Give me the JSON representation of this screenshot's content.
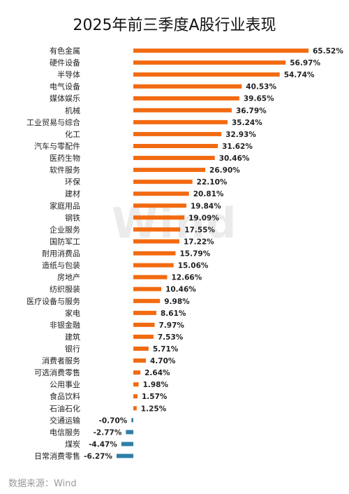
{
  "chart_data": {
    "type": "bar",
    "orientation": "horizontal",
    "title": "2025年前三季度A股行业表现",
    "xlabel": "",
    "ylabel": "",
    "grid": false,
    "legend": "none",
    "categories": [
      "有色金属",
      "硬件设备",
      "半导体",
      "电气设备",
      "媒体娱乐",
      "机械",
      "工业贸易与综合",
      "化工",
      "汽车与零配件",
      "医药生物",
      "软件服务",
      "环保",
      "建材",
      "家庭用品",
      "钢铁",
      "企业服务",
      "国防军工",
      "耐用消费品",
      "造纸与包装",
      "房地产",
      "纺织服装",
      "医疗设备与服务",
      "家电",
      "非银金融",
      "建筑",
      "银行",
      "消费者服务",
      "可选消费零售",
      "公用事业",
      "食品饮料",
      "石油石化",
      "交通运输",
      "电信服务",
      "煤炭",
      "日常消费零售"
    ],
    "values": [
      65.52,
      56.97,
      54.74,
      40.53,
      39.65,
      36.79,
      35.24,
      32.93,
      31.62,
      30.46,
      26.9,
      22.1,
      20.81,
      19.84,
      19.09,
      17.55,
      17.22,
      15.79,
      15.06,
      12.66,
      10.46,
      9.98,
      8.61,
      7.97,
      7.53,
      5.71,
      4.7,
      2.64,
      1.98,
      1.57,
      1.25,
      -0.7,
      -2.77,
      -4.47,
      -6.27
    ],
    "value_labels": [
      "65.52%",
      "56.97%",
      "54.74%",
      "40.53%",
      "39.65%",
      "36.79%",
      "35.24%",
      "32.93%",
      "31.62%",
      "30.46%",
      "26.90%",
      "22.10%",
      "20.81%",
      "19.84%",
      "19.09%",
      "17.55%",
      "17.22%",
      "15.79%",
      "15.06%",
      "12.66%",
      "10.46%",
      "9.98%",
      "8.61%",
      "7.97%",
      "7.53%",
      "5.71%",
      "4.70%",
      "2.64%",
      "1.98%",
      "1.57%",
      "1.25%",
      "-0.70%",
      "-2.77%",
      "-4.47%",
      "-6.27%"
    ],
    "colors": {
      "positive": "#f26a10",
      "negative": "#2e7fa6"
    }
  },
  "watermark": "Wind",
  "source_note": "数据来源：Wind"
}
